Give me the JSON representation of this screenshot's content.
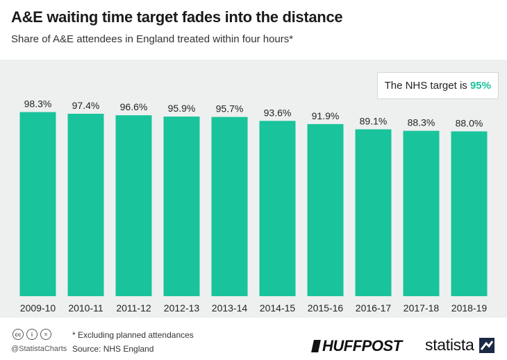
{
  "title": "A&E waiting time target fades into the distance",
  "subtitle": "Share of A&E attendees in England treated within four hours*",
  "annotation": {
    "prefix": "The NHS target is ",
    "value": "95%"
  },
  "footer": {
    "handle": "@StatistaCharts",
    "note": "* Excluding planned attendances",
    "source": "Source: NHS England",
    "brand_huffpost": "HUFFPOST",
    "brand_statista": "statista",
    "cc_icons": [
      "cc",
      "i",
      "="
    ]
  },
  "colors": {
    "bar": "#19c39b",
    "highlight": "#19c39b",
    "plot_bg": "#eef0f0"
  },
  "chart_data": {
    "type": "bar",
    "categories": [
      "2009-10",
      "2010-11",
      "2011-12",
      "2012-13",
      "2013-14",
      "2014-15",
      "2015-16",
      "2016-17",
      "2017-18",
      "2018-19"
    ],
    "values": [
      98.3,
      97.4,
      96.6,
      95.9,
      95.7,
      93.6,
      91.9,
      89.1,
      88.3,
      88.0
    ],
    "labels": [
      "98.3%",
      "97.4%",
      "96.6%",
      "95.9%",
      "95.7%",
      "93.6%",
      "91.9%",
      "89.1%",
      "88.3%",
      "88.0%"
    ],
    "ylim": [
      0,
      100
    ],
    "grid": false
  }
}
